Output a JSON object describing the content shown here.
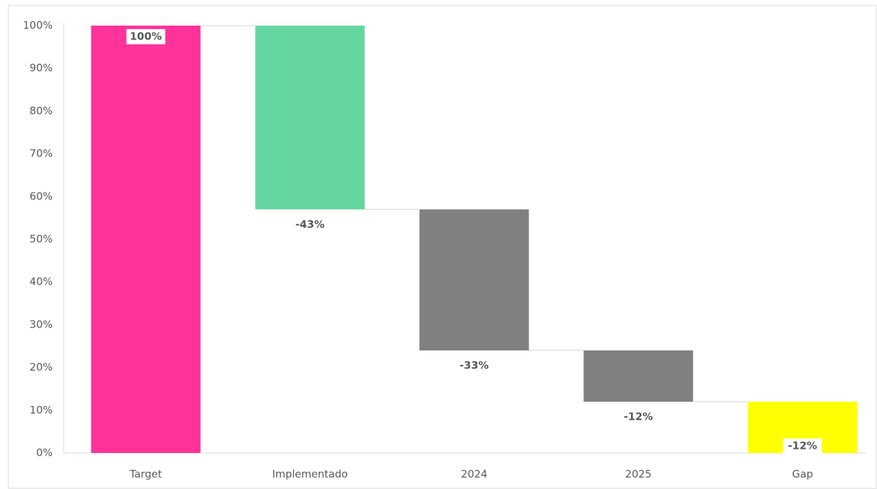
{
  "chart_data": {
    "type": "waterfall",
    "categories": [
      "Target",
      "Implementado",
      "2024",
      "2025",
      "Gap"
    ],
    "values": [
      100,
      -43,
      -33,
      -12,
      -12
    ],
    "value_labels": [
      "100%",
      "-43%",
      "-33%",
      "-12%",
      "-12%"
    ],
    "colors": [
      "#ff3399",
      "#66d6a0",
      "#808080",
      "#808080",
      "#ffff00"
    ],
    "ylim": [
      0,
      100
    ],
    "yticks": [
      {
        "value": 0,
        "label": "0%"
      },
      {
        "value": 10,
        "label": "10%"
      },
      {
        "value": 20,
        "label": "20%"
      },
      {
        "value": 30,
        "label": "30%"
      },
      {
        "value": 40,
        "label": "40%"
      },
      {
        "value": 50,
        "label": "50%"
      },
      {
        "value": 60,
        "label": "60%"
      },
      {
        "value": 70,
        "label": "70%"
      },
      {
        "value": 80,
        "label": "80%"
      },
      {
        "value": 90,
        "label": "90%"
      },
      {
        "value": 100,
        "label": "100%"
      }
    ],
    "grid": false
  }
}
